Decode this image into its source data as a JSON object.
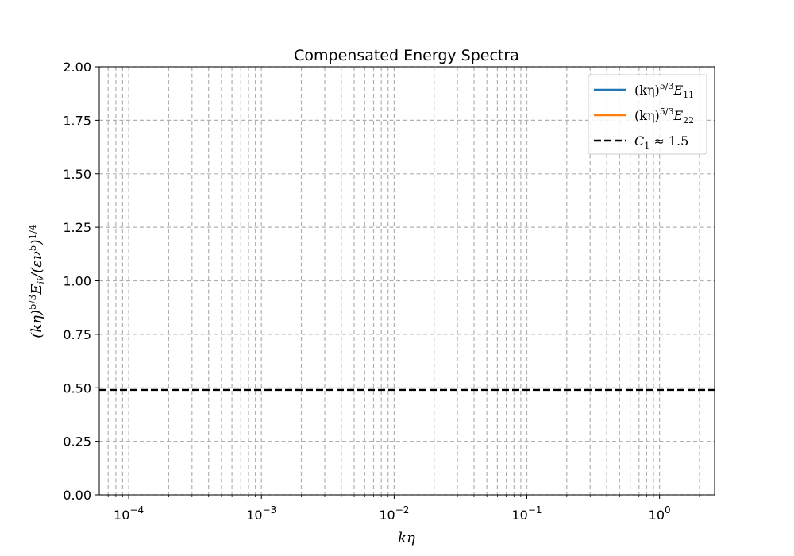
{
  "chart_data": {
    "type": "line",
    "title": "Compensated Energy Spectra",
    "xlabel": "kη",
    "ylabel": "(kη)^5/3 E_ii/(εν^5)^1/4",
    "xscale": "log",
    "xlim": [
      6e-05,
      2.6
    ],
    "ylim": [
      0,
      2.0
    ],
    "x_major_ticks": [
      0.0001,
      0.001,
      0.01,
      0.1,
      1
    ],
    "x_tick_labels": [
      {
        "base": "10",
        "exp": "−4"
      },
      {
        "base": "10",
        "exp": "−3"
      },
      {
        "base": "10",
        "exp": "−2"
      },
      {
        "base": "10",
        "exp": "−1"
      },
      {
        "base": "10",
        "exp": "0"
      }
    ],
    "x_minor_gridlines": [
      7e-05,
      8e-05,
      9e-05,
      0.0002,
      0.0003,
      0.0004,
      0.0005,
      0.0006,
      0.0007,
      0.0008,
      0.0009,
      0.002,
      0.003,
      0.004,
      0.005,
      0.006,
      0.007,
      0.008,
      0.009,
      0.02,
      0.03,
      0.04,
      0.05,
      0.06,
      0.07,
      0.08,
      0.09,
      0.2,
      0.3,
      0.4,
      0.5,
      0.6,
      0.7,
      0.8,
      0.9,
      2
    ],
    "y_ticks": [
      0.0,
      0.25,
      0.5,
      0.75,
      1.0,
      1.25,
      1.5,
      1.75,
      2.0
    ],
    "y_tick_labels": [
      "0.00",
      "0.25",
      "0.50",
      "0.75",
      "1.00",
      "1.25",
      "1.50",
      "1.75",
      "2.00"
    ],
    "grid": true,
    "legend_position": "top-right",
    "series": [
      {
        "name": "(kη)^5/3 E_11",
        "color": "#1f77b4",
        "style": "solid",
        "x": [],
        "y": []
      },
      {
        "name": "(kη)^5/3 E_22",
        "color": "#ff7f0e",
        "style": "solid",
        "x": [],
        "y": []
      }
    ],
    "reference_line": {
      "name": "C_1 ≈ 1.5",
      "value": 0.49,
      "color": "#000000",
      "style": "dashed"
    },
    "legend_entries": [
      {
        "prefix": "(kη)",
        "sup": "5/3",
        "main": "E",
        "sub": "11",
        "color": "#1f77b4",
        "style": "solid"
      },
      {
        "prefix": "(kη)",
        "sup": "5/3",
        "main": "E",
        "sub": "22",
        "color": "#ff7f0e",
        "style": "solid"
      },
      {
        "prefix": "",
        "sup": "",
        "main": "C",
        "sub": "1",
        "suffix": " ≈ 1.5",
        "color": "#000000",
        "style": "dashed"
      }
    ]
  }
}
